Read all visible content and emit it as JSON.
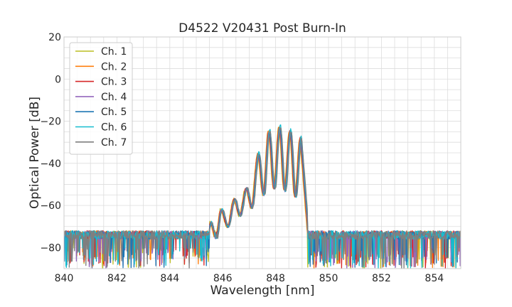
{
  "chart_data": {
    "type": "line",
    "title": "D4522 V20431 Post Burn-In",
    "xlabel": "Wavelength [nm]",
    "ylabel": "Optical Power [dB]",
    "xlim": [
      840,
      855
    ],
    "ylim": [
      -90,
      20
    ],
    "xticks": [
      840,
      842,
      844,
      846,
      848,
      850,
      852,
      854
    ],
    "yticks": [
      20,
      0,
      -20,
      -40,
      -60,
      -80
    ],
    "grid": true,
    "legend_position": "upper-left",
    "series": [
      {
        "name": "Ch. 1",
        "color": "#bcbd22"
      },
      {
        "name": "Ch. 2",
        "color": "#ff7f0e"
      },
      {
        "name": "Ch. 3",
        "color": "#d62728"
      },
      {
        "name": "Ch. 4",
        "color": "#9467bd"
      },
      {
        "name": "Ch. 5",
        "color": "#1f77b4"
      },
      {
        "name": "Ch. 6",
        "color": "#17becf"
      },
      {
        "name": "Ch. 7",
        "color": "#7f7f7f"
      }
    ],
    "spectrum_shape": {
      "noise_floor_db": -74,
      "noise_min_db": -90,
      "peaks": [
        {
          "x": 845.55,
          "y": -68
        },
        {
          "x": 845.95,
          "y": -62
        },
        {
          "x": 846.45,
          "y": -57
        },
        {
          "x": 846.9,
          "y": -52
        },
        {
          "x": 847.35,
          "y": -36
        },
        {
          "x": 847.75,
          "y": -25
        },
        {
          "x": 848.15,
          "y": -23
        },
        {
          "x": 848.55,
          "y": -25
        },
        {
          "x": 848.95,
          "y": -28
        }
      ],
      "valleys": [
        {
          "x": 845.75,
          "y": -76
        },
        {
          "x": 846.2,
          "y": -70
        },
        {
          "x": 846.65,
          "y": -65
        },
        {
          "x": 847.1,
          "y": -61
        },
        {
          "x": 847.55,
          "y": -55
        },
        {
          "x": 847.95,
          "y": -52
        },
        {
          "x": 848.35,
          "y": -53
        },
        {
          "x": 848.75,
          "y": -56
        }
      ],
      "edge_left_nm": 845.5,
      "edge_right_nm": 849.2
    }
  }
}
